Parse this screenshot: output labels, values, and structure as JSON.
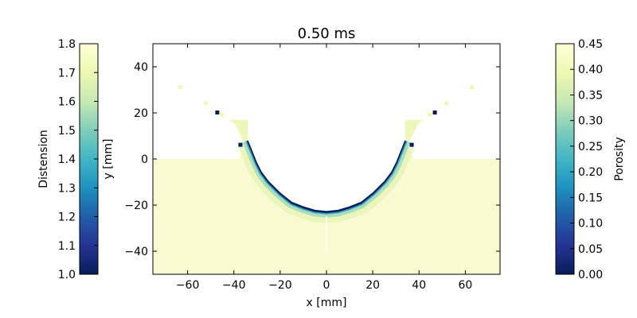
{
  "chart_data": {
    "type": "heatmap",
    "title": "0.50 ms",
    "xlabel": "x [mm]",
    "ylabel": "y [mm]",
    "xlim": [
      -75,
      75
    ],
    "ylim": [
      -50,
      50
    ],
    "xticks": [
      -60,
      -40,
      -20,
      0,
      20,
      40,
      60
    ],
    "yticks": [
      -40,
      -20,
      0,
      20,
      40
    ],
    "crater_profile_left": [
      [
        -34,
        8
      ],
      [
        -32,
        3
      ],
      [
        -30,
        -2
      ],
      [
        -28,
        -6
      ],
      [
        -25,
        -10
      ],
      [
        -20,
        -15
      ],
      [
        -15,
        -19
      ],
      [
        -10,
        -21
      ],
      [
        -5,
        -22.5
      ],
      [
        0,
        -23
      ]
    ],
    "ejecta_curve_left": [
      [
        -34,
        8
      ],
      [
        -36,
        12
      ],
      [
        -39,
        15
      ],
      [
        -42,
        17
      ]
    ],
    "ejecta_particles": [
      [
        -63,
        31,
        0.38
      ],
      [
        -52,
        24,
        0.38
      ],
      [
        -47,
        20,
        0.0
      ],
      [
        -45,
        19,
        0.4
      ],
      [
        -37,
        6,
        0.0
      ],
      [
        63,
        31,
        0.38
      ],
      [
        52,
        24,
        0.38
      ],
      [
        47,
        20,
        0.0
      ],
      [
        45,
        19,
        0.4
      ],
      [
        37,
        6,
        0.0
      ]
    ],
    "colorbars": [
      {
        "label": "Distension",
        "range": [
          1.0,
          1.8
        ],
        "ticks": [
          "1.0",
          "1.1",
          "1.2",
          "1.3",
          "1.4",
          "1.5",
          "1.6",
          "1.7",
          "1.8"
        ],
        "side": "left"
      },
      {
        "label": "Porosity",
        "range": [
          0.0,
          0.45
        ],
        "ticks": [
          "0.00",
          "0.05",
          "0.10",
          "0.15",
          "0.20",
          "0.25",
          "0.30",
          "0.35",
          "0.40",
          "0.45"
        ],
        "side": "right"
      }
    ],
    "colormap": [
      "#081d58",
      "#253494",
      "#225ea8",
      "#1d91c0",
      "#41b6c4",
      "#7fcdbb",
      "#c7e9b4",
      "#edf8b1",
      "#ffffd9"
    ]
  }
}
